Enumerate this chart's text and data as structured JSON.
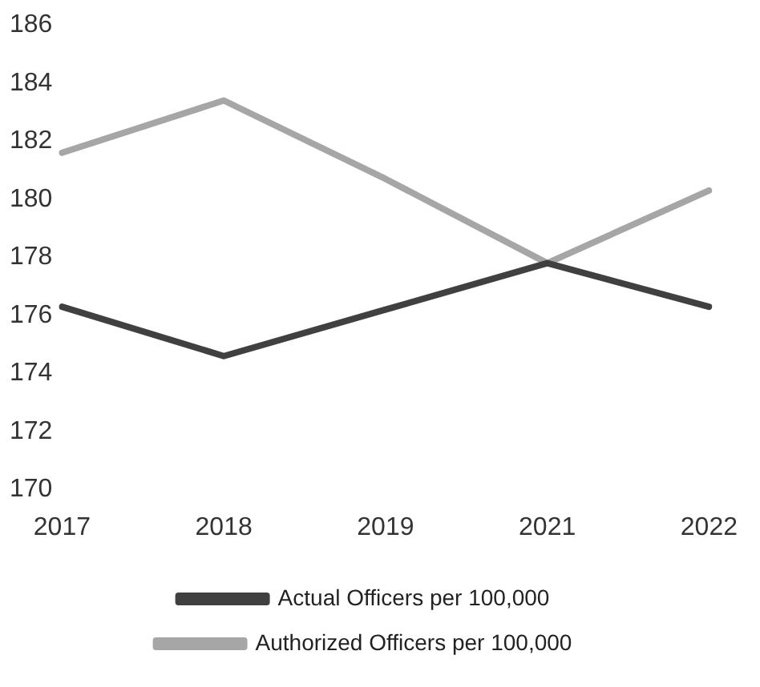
{
  "chart_data": {
    "type": "line",
    "categories": [
      "2017",
      "2018",
      "2019",
      "2021",
      "2022"
    ],
    "series": [
      {
        "name": "Actual Officers per 100,000",
        "color": "#404040",
        "values": [
          176.3,
          174.6,
          176.2,
          177.8,
          176.3
        ]
      },
      {
        "name": "Authorized Officers per 100,000",
        "color": "#a6a6a6",
        "values": [
          181.6,
          183.4,
          180.7,
          177.8,
          180.3
        ]
      }
    ],
    "ylim": [
      170,
      186
    ],
    "yticks": [
      170,
      172,
      174,
      176,
      178,
      180,
      182,
      184,
      186
    ],
    "grid": false,
    "legend": "bottom",
    "marker": "none",
    "line_style": "solid"
  }
}
